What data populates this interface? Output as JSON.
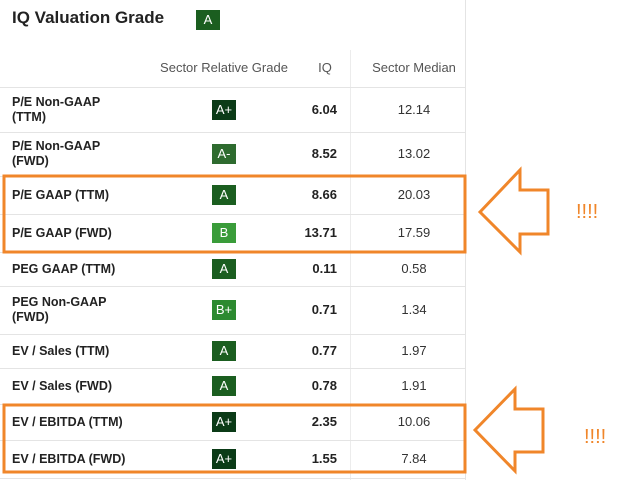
{
  "header": {
    "title": "IQ Valuation Grade",
    "grade": "A"
  },
  "table": {
    "columns": [
      "Sector Relative Grade",
      "IQ",
      "Sector Median"
    ],
    "rows": [
      [
        "P/E Non-GAAP\n(TTM)",
        "A+",
        "6.04",
        "12.14"
      ],
      [
        "P/E Non-GAAP\n(FWD)",
        "A-",
        "8.52",
        "13.02"
      ],
      [
        "P/E GAAP (TTM)",
        "A",
        "8.66",
        "20.03"
      ],
      [
        "P/E GAAP (FWD)",
        "B",
        "13.71",
        "17.59"
      ],
      [
        "PEG GAAP (TTM)",
        "A",
        "0.11",
        "0.58"
      ],
      [
        "PEG Non-GAAP\n(FWD)",
        "B+",
        "0.71",
        "1.34"
      ],
      [
        "EV / Sales (TTM)",
        "A",
        "0.77",
        "1.97"
      ],
      [
        "EV / Sales (FWD)",
        "A",
        "0.78",
        "1.91"
      ],
      [
        "EV / EBITDA (TTM)",
        "A+",
        "2.35",
        "10.06"
      ],
      [
        "EV / EBITDA (FWD)",
        "A+",
        "1.55",
        "7.84"
      ]
    ]
  },
  "annotations": [
    "!!!!",
    "!!!!"
  ]
}
